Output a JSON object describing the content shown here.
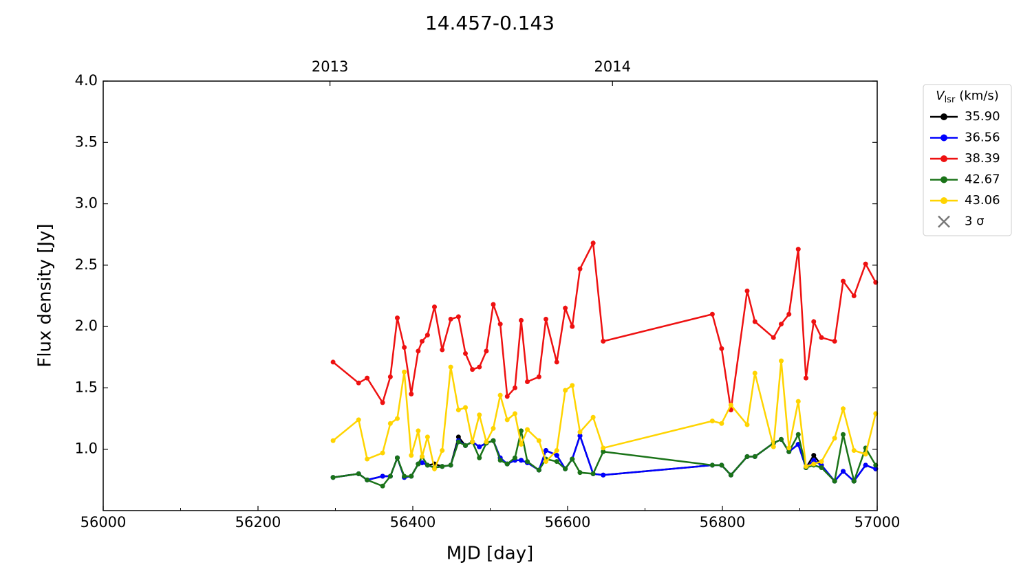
{
  "chart_data": {
    "type": "line",
    "title": "14.457-0.143",
    "x_label": "MJD [day]",
    "y_label": "Flux density [Jy]",
    "xlim": [
      56000,
      57000
    ],
    "xticks": [
      56000,
      56200,
      56400,
      56600,
      56800,
      57000
    ],
    "xminorticks": [
      56100,
      56300,
      56500,
      56700,
      56900
    ],
    "x2ticks": [
      {
        "value": 56293,
        "label": "2013"
      },
      {
        "value": 56658,
        "label": "2014"
      }
    ],
    "ylim": [
      0.5,
      4.0
    ],
    "yticks": [
      {
        "value": 1,
        "label": "1.0"
      },
      1.5,
      {
        "value": 2,
        "label": "2.0"
      },
      2.5,
      {
        "value": 3,
        "label": "3.0"
      },
      3.5,
      {
        "value": 4,
        "label": "4.0"
      }
    ],
    "legend_title": {
      "symbol": "V",
      "subscript": "lsr",
      "unit": "(km/s)"
    },
    "legend_position": "outside-right",
    "limit_marker": {
      "label": "3 σ",
      "color": "#777777"
    },
    "x": [
      56297,
      56330,
      56341,
      56361,
      56371,
      56380,
      56389,
      56398,
      56407,
      56412,
      56419,
      56428,
      56438,
      56449,
      56459,
      56468,
      56477,
      56486,
      56495,
      56504,
      56513,
      56522,
      56532,
      56540,
      56548,
      56563,
      56572,
      56586,
      56597,
      56606,
      56616,
      56633,
      56646,
      56787,
      56799,
      56811,
      56832,
      56842,
      56866,
      56876,
      56886,
      56898,
      56908,
      56918,
      56928,
      56945,
      56956,
      56970,
      56985,
      56998
    ],
    "series": [
      {
        "name": "35.90",
        "color": "#000000",
        "values": [
          0.77,
          0.8,
          0.75,
          0.78,
          0.78,
          0.93,
          0.77,
          0.78,
          0.88,
          0.89,
          0.87,
          0.88,
          0.86,
          0.87,
          1.1,
          1.03,
          1.06,
          1.02,
          1.05,
          1.07,
          0.93,
          0.88,
          0.91,
          0.91,
          0.89,
          0.83,
          0.99,
          0.95,
          0.84,
          0.92,
          1.11,
          0.8,
          0.79,
          0.87,
          0.87,
          0.79,
          0.94,
          0.94,
          1.05,
          1.08,
          0.98,
          1.04,
          0.85,
          0.95,
          0.87,
          0.74,
          0.82,
          0.74,
          0.87,
          0.84
        ]
      },
      {
        "name": "36.56",
        "color": "#0000ff",
        "values": [
          0.77,
          0.8,
          0.75,
          0.78,
          0.78,
          0.93,
          0.77,
          0.78,
          0.88,
          0.89,
          0.87,
          0.85,
          0.86,
          0.87,
          1.07,
          1.03,
          1.06,
          1.02,
          1.05,
          1.07,
          0.93,
          0.88,
          0.91,
          0.91,
          0.89,
          0.83,
          0.99,
          0.95,
          0.84,
          0.92,
          1.11,
          0.8,
          0.79,
          0.87,
          0.87,
          0.79,
          0.94,
          0.94,
          1.05,
          1.08,
          0.98,
          1.04,
          0.85,
          0.91,
          0.87,
          0.74,
          0.82,
          0.74,
          0.87,
          0.84
        ]
      },
      {
        "name": "38.39",
        "color": "#ee1111",
        "values": [
          1.71,
          1.54,
          1.58,
          1.38,
          1.59,
          2.07,
          1.83,
          1.45,
          1.8,
          1.88,
          1.93,
          2.16,
          1.81,
          2.06,
          2.08,
          1.78,
          1.65,
          1.67,
          1.8,
          2.18,
          2.02,
          1.43,
          1.5,
          2.05,
          1.55,
          1.59,
          2.06,
          1.71,
          2.15,
          2.0,
          2.47,
          2.68,
          1.88,
          2.1,
          1.82,
          1.32,
          2.29,
          2.04,
          1.91,
          2.02,
          2.1,
          2.63,
          1.58,
          2.04,
          1.91,
          1.88,
          2.37,
          2.25,
          2.51,
          2.36
        ]
      },
      {
        "name": "42.67",
        "color": "#1a7318",
        "values": [
          0.77,
          0.8,
          0.75,
          0.7,
          0.78,
          0.93,
          0.78,
          0.78,
          0.88,
          0.94,
          0.87,
          0.85,
          0.86,
          0.87,
          1.06,
          1.03,
          1.06,
          0.93,
          1.05,
          1.07,
          0.91,
          0.88,
          0.93,
          1.15,
          0.9,
          0.83,
          0.92,
          0.9,
          0.84,
          0.92,
          0.81,
          0.8,
          0.98,
          0.87,
          0.87,
          0.79,
          0.94,
          0.94,
          1.05,
          1.08,
          0.98,
          1.12,
          0.85,
          0.87,
          0.85,
          0.74,
          1.12,
          0.74,
          1.01,
          0.87
        ]
      },
      {
        "name": "43.06",
        "color": "#ffd400",
        "values": [
          1.07,
          1.24,
          0.92,
          0.97,
          1.21,
          1.25,
          1.63,
          0.95,
          1.15,
          0.94,
          1.1,
          0.84,
          0.99,
          1.67,
          1.32,
          1.34,
          1.06,
          1.28,
          1.06,
          1.17,
          1.44,
          1.24,
          1.29,
          1.04,
          1.16,
          1.07,
          0.9,
          0.99,
          1.48,
          1.52,
          1.14,
          1.26,
          1.01,
          1.23,
          1.21,
          1.36,
          1.2,
          1.62,
          1.02,
          1.72,
          1.01,
          1.39,
          0.86,
          0.88,
          0.9,
          1.09,
          1.33,
          0.99,
          0.96,
          1.29
        ]
      }
    ]
  }
}
